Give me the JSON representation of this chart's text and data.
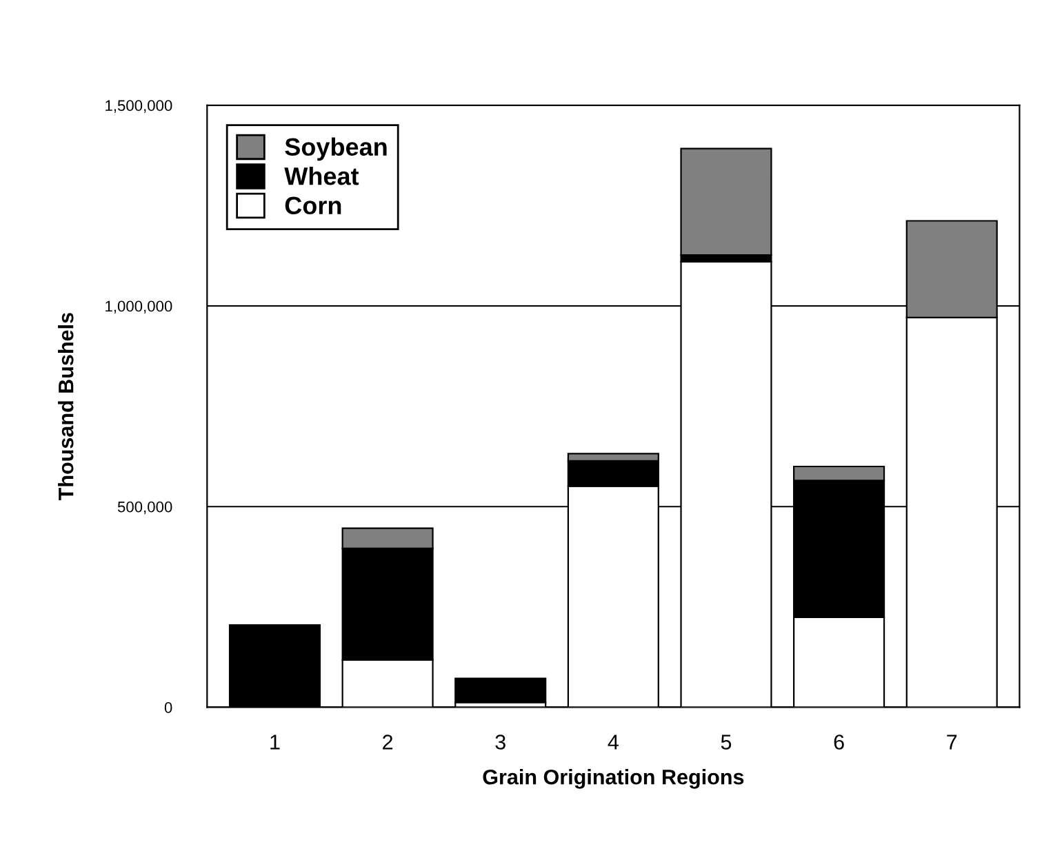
{
  "chart_data": {
    "type": "bar",
    "stacked": true,
    "xlabel": "Grain Origination Regions",
    "ylabel": "Thousand Bushels",
    "categories": [
      "1",
      "2",
      "3",
      "4",
      "5",
      "6",
      "7"
    ],
    "series": [
      {
        "name": "Corn",
        "color": "#ffffff",
        "values": [
          null,
          118000,
          12000,
          551000,
          1110000,
          224000,
          971000
        ]
      },
      {
        "name": "Wheat",
        "color": "#000000",
        "values": [
          205000,
          278000,
          60000,
          63000,
          17000,
          341000,
          null
        ]
      },
      {
        "name": "Soybean",
        "color": "#808080",
        "values": [
          null,
          50000,
          null,
          18000,
          265000,
          35000,
          241000
        ]
      }
    ],
    "ylim": [
      0,
      1500000
    ],
    "yticks": [
      {
        "value": 0,
        "label": "0"
      },
      {
        "value": 500000,
        "label": "500,000"
      },
      {
        "value": 1000000,
        "label": "1,000,000"
      },
      {
        "value": 1500000,
        "label": "1,500,000"
      }
    ],
    "grid": "y",
    "legend": "top left"
  }
}
